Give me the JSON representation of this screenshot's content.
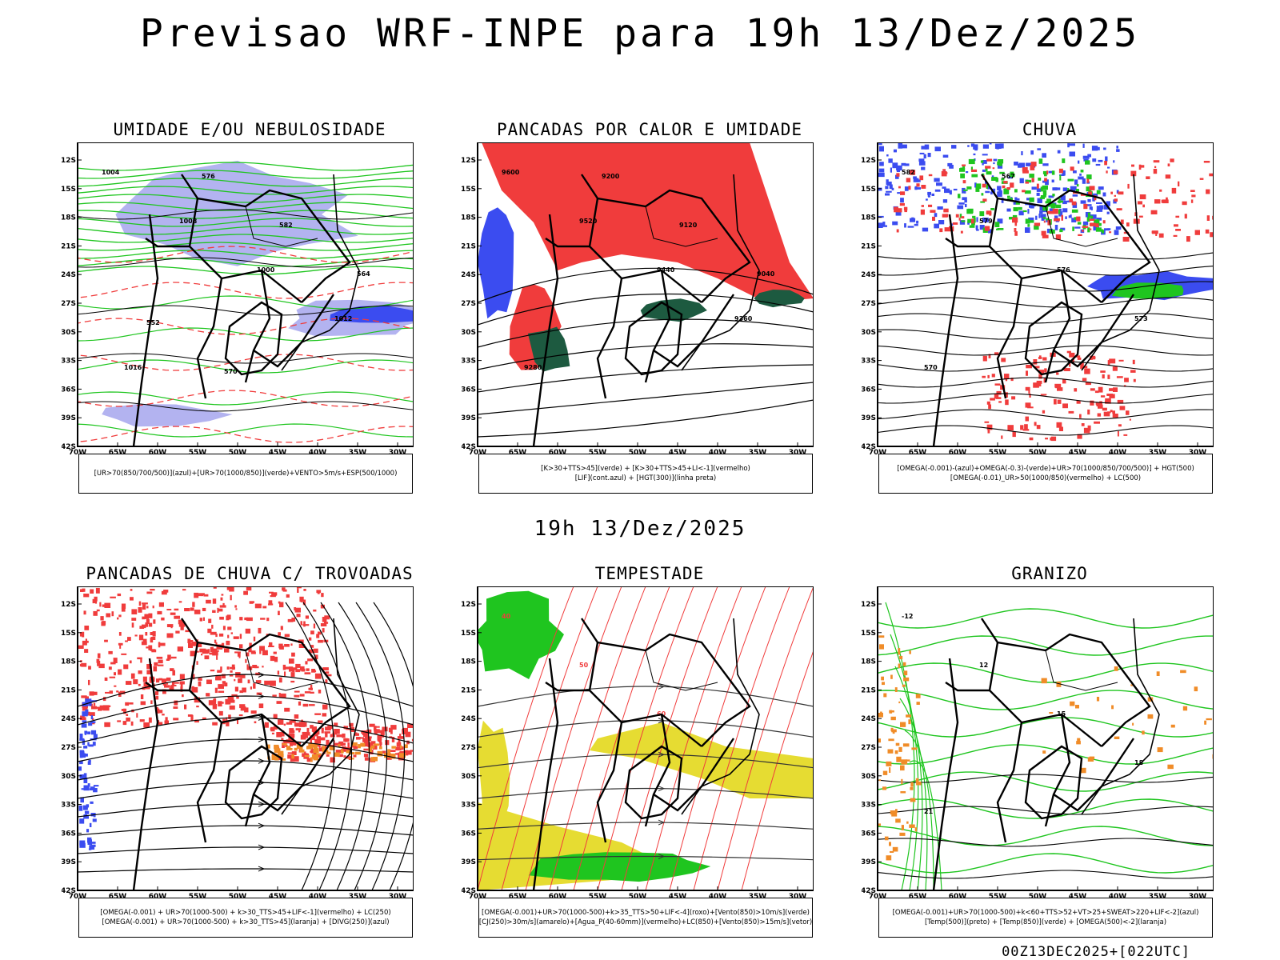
{
  "title": "Previsao WRF-INPE  para 19h 13/Dez/2025",
  "subtitle": "19h 13/Dez/2025",
  "footer": "00Z13DEC2025+[022UTC]",
  "lat_ticks": [
    "12S",
    "15S",
    "18S",
    "21S",
    "24S",
    "27S",
    "30S",
    "33S",
    "36S",
    "39S",
    "42S"
  ],
  "lon_ticks": [
    "70W",
    "65W",
    "60W",
    "55W",
    "50W",
    "45W",
    "40W",
    "35W",
    "30W"
  ],
  "colors": {
    "blue": "#3b4cf0",
    "green": "#1fc51f",
    "red": "#f03c3c",
    "orange": "#f08c28",
    "yellow": "#e6dc32",
    "lavender": "#b3b3f0",
    "darkgreen": "#1d5a40"
  },
  "panels": [
    {
      "title": "UMIDADE E/OU NEBULOSIDADE",
      "legend": [
        "[UR>70(850/700/500)](azul)+[UR>70(1000/850)](verde)+VENTO>5m/s+ESP(500/1000)"
      ],
      "contour_labels": [
        "1004",
        "1008",
        "1000",
        "1012",
        "1016",
        "576",
        "582",
        "564",
        "552",
        "570"
      ]
    },
    {
      "title": "PANCADAS POR CALOR E UMIDADE",
      "legend": [
        "[K>30+TTS>45](verde) + [K>30+TTS>45+LI<-1](vermelho)",
        "[LIF](cont.azul) + [HGT(300)](linha preta)"
      ],
      "contour_labels": [
        "9600",
        "9520",
        "9440",
        "9360",
        "9280",
        "9200",
        "9120",
        "9040"
      ]
    },
    {
      "title": "CHUVA",
      "legend": [
        "[OMEGA(-0.001)-(azul)+OMEGA(-0.3)-(verde)+UR>70(1000/850/700/500)] + HGT(500)",
        "[OMEGA(-0.01)_UR>50(1000/850)(vermelho) + LC(500)"
      ],
      "contour_labels": [
        "582",
        "579",
        "576",
        "573",
        "570",
        "567"
      ]
    },
    {
      "title": "PANCADAS DE CHUVA C/ TROVOADAS",
      "legend": [
        "[OMEGA(-0.001) + UR>70(1000-500) + k>30_TTS>45+LIF<-1](vermelho) + LC(250)",
        "[OMEGA(-0.001) + UR>70(1000-500) + k>30_TTS>45](laranja) + [DIVG(250)](azul)"
      ],
      "contour_labels": []
    },
    {
      "title": "TEMPESTADE",
      "legend": [
        "[OMEGA(-0.001)+UR>70(1000-500)+k>35_TTS>50+LIF<-4](roxo)+[Vento(850)>10m/s](verde)",
        "[CJ(250)>30m/s](amarelo)+[Agua_P(40-60mm)](vermelho)+LC(850)+[Vento(850)>15m/s](vetor)"
      ],
      "contour_labels": [
        "40",
        "50",
        "60"
      ]
    },
    {
      "title": "GRANIZO",
      "legend": [
        "[OMEGA(-0.001)+UR>70(1000-500)+k<60+TTS>52+VT>25+SWEAT>220+LIF<-2](azul)",
        "[Temp(500)](preto) + [Temp(850)](verde) + [OMEGA(500)<-2](laranja)"
      ],
      "contour_labels": [
        "-12",
        "12",
        "15",
        "18",
        "21"
      ]
    }
  ]
}
